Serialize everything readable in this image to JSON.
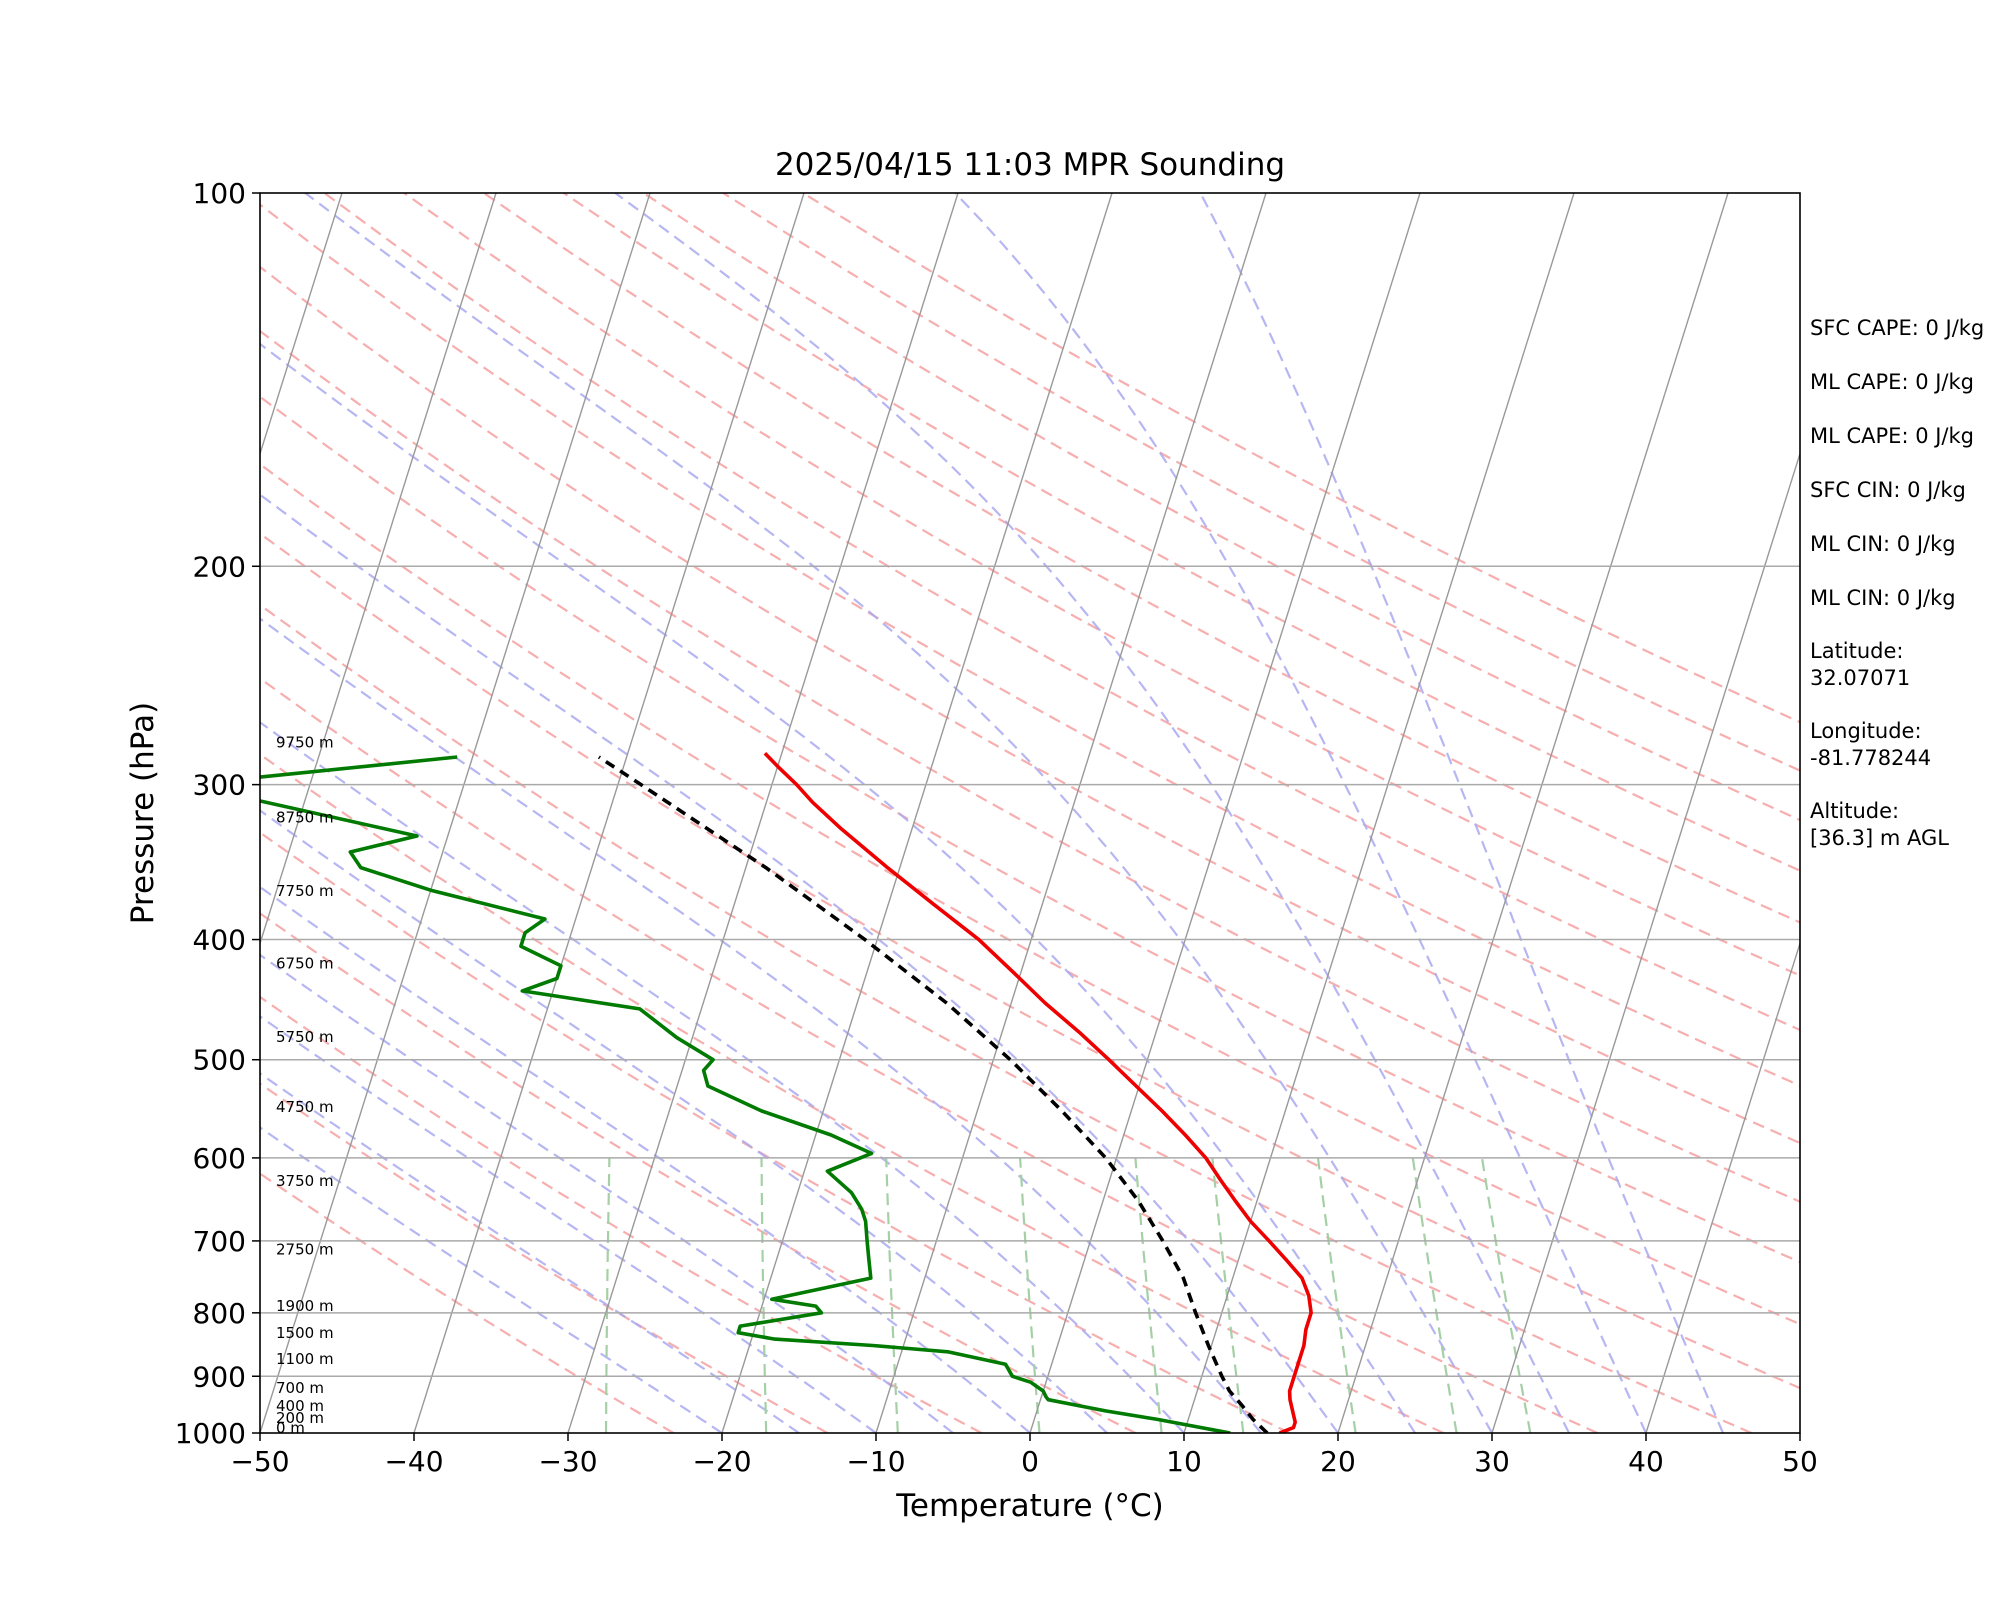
{
  "chart_data": {
    "type": "line",
    "title": "2025/04/15 11:03 MPR Sounding",
    "xlabel": "Temperature (°C)",
    "ylabel": "Pressure (hPa)",
    "xlim": [
      -50,
      50
    ],
    "ylim": [
      1000,
      100
    ],
    "y_scale": "log",
    "skew": "Skew-T log-P diagram",
    "x_ticks": [
      -50,
      -40,
      -30,
      -20,
      -10,
      0,
      10,
      20,
      30,
      40,
      50
    ],
    "x_tick_labels": [
      "−50",
      "−40",
      "−30",
      "−20",
      "−10",
      "0",
      "10",
      "20",
      "30",
      "40",
      "50"
    ],
    "y_ticks": [
      1000,
      900,
      800,
      700,
      600,
      500,
      400,
      300,
      200,
      100
    ],
    "y_tick_labels": [
      "1000",
      "900",
      "800",
      "700",
      "600",
      "500",
      "400",
      "300",
      "200",
      "100"
    ],
    "grid": "horizontal isobars",
    "colors": {
      "temperature": "#ee0000",
      "dewpoint": "#007a00",
      "parcel": "#000000",
      "isotherm": "#999999",
      "dry_adiabat": "#f4a0a0",
      "moist_adiabat": "#a9a9f0",
      "mixing_ratio": "#a5d0a5"
    },
    "series": [
      {
        "key": "temperature",
        "points": [
          [
            1000,
            16.2
          ],
          [
            995,
            16.6
          ],
          [
            990,
            17.0
          ],
          [
            980,
            17.0
          ],
          [
            960,
            16.6
          ],
          [
            940,
            16.2
          ],
          [
            925,
            16.0
          ],
          [
            900,
            16.0
          ],
          [
            875,
            16.0
          ],
          [
            850,
            16.0
          ],
          [
            825,
            15.8
          ],
          [
            800,
            15.8
          ],
          [
            775,
            15.3
          ],
          [
            750,
            14.5
          ],
          [
            725,
            13.1
          ],
          [
            700,
            11.6
          ],
          [
            675,
            10.0
          ],
          [
            650,
            8.6
          ],
          [
            625,
            7.2
          ],
          [
            600,
            5.8
          ],
          [
            575,
            4.0
          ],
          [
            550,
            2.0
          ],
          [
            525,
            -0.2
          ],
          [
            500,
            -2.5
          ],
          [
            475,
            -5.0
          ],
          [
            450,
            -7.8
          ],
          [
            425,
            -10.5
          ],
          [
            400,
            -13.4
          ],
          [
            375,
            -17.0
          ],
          [
            350,
            -20.8
          ],
          [
            325,
            -24.7
          ],
          [
            310,
            -27.0
          ],
          [
            300,
            -28.4
          ],
          [
            290,
            -30.0
          ],
          [
            283,
            -31.1
          ]
        ]
      },
      {
        "key": "dewpoint",
        "points": [
          [
            1000,
            13.0
          ],
          [
            995,
            12.0
          ],
          [
            985,
            10.0
          ],
          [
            975,
            8.0
          ],
          [
            960,
            4.5
          ],
          [
            950,
            2.5
          ],
          [
            940,
            0.5
          ],
          [
            935,
            0.3
          ],
          [
            925,
            0.0
          ],
          [
            910,
            -1.0
          ],
          [
            900,
            -2.3
          ],
          [
            880,
            -3.0
          ],
          [
            860,
            -7.0
          ],
          [
            850,
            -12.0
          ],
          [
            840,
            -18.5
          ],
          [
            830,
            -21.0
          ],
          [
            820,
            -21.0
          ],
          [
            800,
            -16.0
          ],
          [
            790,
            -16.5
          ],
          [
            780,
            -19.5
          ],
          [
            750,
            -13.5
          ],
          [
            725,
            -14.0
          ],
          [
            700,
            -14.5
          ],
          [
            675,
            -15.0
          ],
          [
            660,
            -15.5
          ],
          [
            640,
            -16.5
          ],
          [
            615,
            -18.5
          ],
          [
            595,
            -16.0
          ],
          [
            575,
            -19.0
          ],
          [
            550,
            -24.0
          ],
          [
            525,
            -28.0
          ],
          [
            510,
            -28.6
          ],
          [
            500,
            -28.2
          ],
          [
            480,
            -31.0
          ],
          [
            455,
            -34.0
          ],
          [
            440,
            -42.0
          ],
          [
            430,
            -40.0
          ],
          [
            420,
            -40.0
          ],
          [
            405,
            -43.0
          ],
          [
            395,
            -43.0
          ],
          [
            385,
            -42.0
          ],
          [
            365,
            -50.0
          ],
          [
            350,
            -55.0
          ],
          [
            340,
            -56.0
          ],
          [
            330,
            -52.0
          ],
          [
            300,
            -68.0
          ],
          [
            285,
            -51.0
          ]
        ]
      },
      {
        "key": "parcel",
        "points": [
          [
            1000,
            15.4
          ],
          [
            975,
            14.2
          ],
          [
            950,
            13.2
          ],
          [
            925,
            12.1
          ],
          [
            900,
            11.3
          ],
          [
            850,
            9.8
          ],
          [
            800,
            8.3
          ],
          [
            750,
            6.8
          ],
          [
            700,
            4.7
          ],
          [
            650,
            2.3
          ],
          [
            600,
            -0.7
          ],
          [
            550,
            -4.5
          ],
          [
            500,
            -8.9
          ],
          [
            450,
            -14.2
          ],
          [
            400,
            -20.8
          ],
          [
            350,
            -28.7
          ],
          [
            300,
            -38.5
          ],
          [
            285,
            -41.8
          ]
        ]
      }
    ],
    "height_labels": [
      {
        "text": "0 m",
        "p": 1000
      },
      {
        "text": "200 m",
        "p": 982
      },
      {
        "text": "400 m",
        "p": 960
      },
      {
        "text": "700 m",
        "p": 928
      },
      {
        "text": "1100 m",
        "p": 880
      },
      {
        "text": "1500 m",
        "p": 838
      },
      {
        "text": "1900 m",
        "p": 797
      },
      {
        "text": "2750 m",
        "p": 718
      },
      {
        "text": "3750 m",
        "p": 632
      },
      {
        "text": "4750 m",
        "p": 551
      },
      {
        "text": "5750 m",
        "p": 484
      },
      {
        "text": "6750 m",
        "p": 422
      },
      {
        "text": "7750 m",
        "p": 369
      },
      {
        "text": "8750 m",
        "p": 322
      },
      {
        "text": "9750 m",
        "p": 280
      }
    ],
    "info_lines": [
      "SFC CAPE: 0 J/kg",
      "ML CAPE: 0 J/kg",
      "ML CAPE: 0 J/kg",
      "SFC CIN: 0 J/kg",
      "ML CIN: 0 J/kg",
      "ML CIN: 0 J/kg",
      "Latitude:",
      "32.07071",
      "Longitude:",
      "-81.778244",
      "Altitude:",
      "[36.3] m AGL"
    ]
  }
}
